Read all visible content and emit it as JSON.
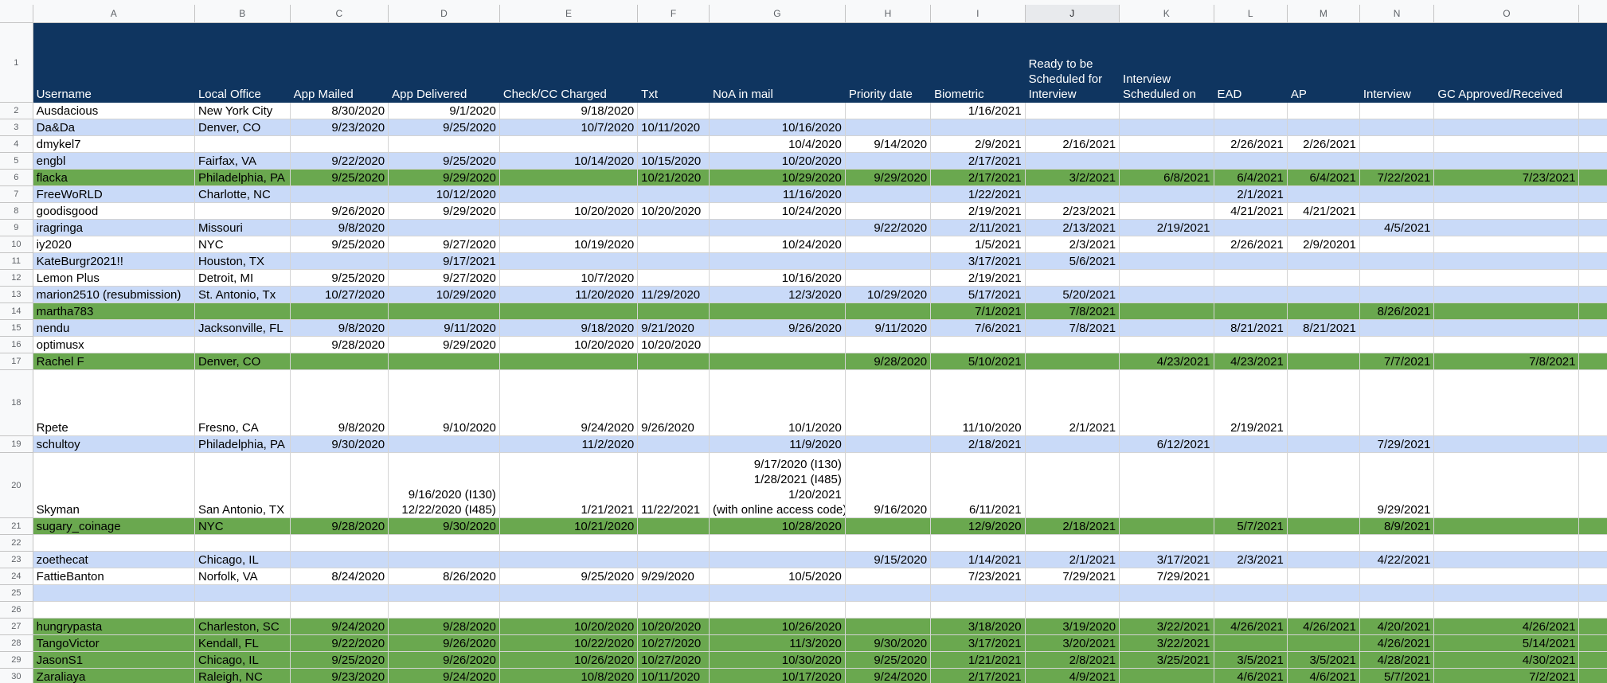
{
  "app": {
    "name": "Spreadsheet"
  },
  "colors": {
    "header_bg": "#0f3560",
    "band_blue": "#c9daf8",
    "band_green": "#6aa84f",
    "grid": "#d4d4d4"
  },
  "columns": [
    "A",
    "B",
    "C",
    "D",
    "E",
    "F",
    "G",
    "H",
    "I",
    "J",
    "K",
    "L",
    "M",
    "N",
    "O"
  ],
  "selected_column": "J",
  "headers": [
    "Username",
    "Local Office",
    "App Mailed",
    "App Delivered",
    "Check/CC Charged",
    "Txt",
    "NoA in mail",
    "Priority date",
    "Biometric",
    "Ready to be\n Scheduled for\nInterview",
    "Interview\nScheduled\non",
    "EAD",
    "AP",
    "Interview",
    "GC Approved/Received"
  ],
  "rows": [
    {
      "n": "2",
      "style": "white",
      "cells": [
        "Ausdacious",
        "New York City",
        "8/30/2020",
        "9/1/2020",
        "9/18/2020",
        "",
        "",
        "",
        "1/16/2021",
        "",
        "",
        "",
        "",
        "",
        ""
      ]
    },
    {
      "n": "3",
      "style": "blue",
      "cells": [
        "Da&Da",
        "Denver, CO",
        "9/23/2020",
        "9/25/2020",
        "10/7/2020",
        "10/11/2020",
        "10/16/2020",
        "",
        "",
        "",
        "",
        "",
        "",
        "",
        ""
      ]
    },
    {
      "n": "4",
      "style": "white",
      "cells": [
        "dmykel7",
        "",
        "",
        "",
        "",
        "",
        "10/4/2020",
        "9/14/2020",
        "2/9/2021",
        "2/16/2021",
        "",
        "2/26/2021",
        "2/26/2021",
        "",
        ""
      ]
    },
    {
      "n": "5",
      "style": "blue",
      "cells": [
        "engbl",
        "Fairfax, VA",
        "9/22/2020",
        "9/25/2020",
        "10/14/2020",
        "10/15/2020",
        "10/20/2020",
        "",
        "2/17/2021",
        "",
        "",
        "",
        "",
        "",
        ""
      ]
    },
    {
      "n": "6",
      "style": "green",
      "cells": [
        "flacka",
        "Philadelphia, PA",
        "9/25/2020",
        "9/29/2020",
        "",
        "10/21/2020",
        "10/29/2020",
        "9/29/2020",
        "2/17/2021",
        "3/2/2021",
        "6/8/2021",
        "6/4/2021",
        "6/4/2021",
        "7/22/2021",
        "7/23/2021"
      ]
    },
    {
      "n": "7",
      "style": "blue",
      "cells": [
        "FreeWoRLD",
        "Charlotte, NC",
        "",
        "10/12/2020",
        "",
        "",
        "11/16/2020",
        "",
        "1/22/2021",
        "",
        "",
        "2/1/2021",
        "",
        "",
        ""
      ]
    },
    {
      "n": "8",
      "style": "white",
      "cells": [
        "goodisgood",
        "",
        "9/26/2020",
        "9/29/2020",
        "10/20/2020",
        "10/20/2020",
        "10/24/2020",
        "",
        "2/19/2021",
        "2/23/2021",
        "",
        "4/21/2021",
        "4/21/2021",
        "",
        ""
      ]
    },
    {
      "n": "9",
      "style": "blue",
      "cells": [
        "iragringa",
        "Missouri",
        "9/8/2020",
        "",
        "",
        "",
        "",
        "9/22/2020",
        "2/11/2021",
        "2/13/2021",
        "2/19/2021",
        "",
        "",
        "4/5/2021",
        ""
      ]
    },
    {
      "n": "10",
      "style": "white",
      "cells": [
        "iy2020",
        "NYC",
        "9/25/2020",
        "9/27/2020",
        "10/19/2020",
        "",
        "10/24/2020",
        "",
        "1/5/2021",
        "2/3/2021",
        "",
        "2/26/2021",
        "2/9/20201",
        "",
        ""
      ]
    },
    {
      "n": "11",
      "style": "blue",
      "cells": [
        "KateBurgr2021!!",
        "Houston, TX",
        "",
        "9/17/2021",
        "",
        "",
        "",
        "",
        "3/17/2021",
        "5/6/2021",
        "",
        "",
        "",
        "",
        ""
      ]
    },
    {
      "n": "12",
      "style": "white",
      "cells": [
        "Lemon Plus",
        "Detroit, MI",
        "9/25/2020",
        "9/27/2020",
        "10/7/2020",
        "",
        "10/16/2020",
        "",
        "2/19/2021",
        "",
        "",
        "",
        "",
        "",
        ""
      ]
    },
    {
      "n": "13",
      "style": "blue",
      "cells": [
        "marion2510 (resubmission)",
        "St. Antonio, Tx",
        "10/27/2020",
        "10/29/2020",
        "11/20/2020",
        "11/29/2020",
        "12/3/2020",
        "10/29/2020",
        "5/17/2021",
        "5/20/2021",
        "",
        "",
        "",
        "",
        ""
      ]
    },
    {
      "n": "14",
      "style": "green",
      "cells": [
        "martha783",
        "",
        "",
        "",
        "",
        "",
        "",
        "",
        "7/1/2021",
        "7/8/2021",
        "",
        "",
        "",
        "8/26/2021",
        ""
      ]
    },
    {
      "n": "15",
      "style": "blue",
      "cells": [
        "nendu",
        "Jacksonville, FL",
        "9/8/2020",
        "9/11/2020",
        "9/18/2020",
        "9/21/2020",
        "9/26/2020",
        "9/11/2020",
        "7/6/2021",
        "7/8/2021",
        "",
        "8/21/2021",
        "8/21/2021",
        "",
        ""
      ]
    },
    {
      "n": "16",
      "style": "white",
      "cells": [
        "optimusx",
        "",
        "9/28/2020",
        "9/29/2020",
        "10/20/2020",
        "10/20/2020",
        "",
        "",
        "",
        "",
        "",
        "",
        "",
        "",
        ""
      ]
    },
    {
      "n": "17",
      "style": "green",
      "cells": [
        "Rachel F",
        "Denver, CO",
        "",
        "",
        "",
        "",
        "",
        "9/28/2020",
        "5/10/2021",
        "",
        "4/23/2021",
        "4/23/2021",
        "",
        "7/7/2021",
        "7/8/2021"
      ]
    },
    {
      "n": "18",
      "style": "white",
      "tall": true,
      "cells": [
        "Rpete",
        "Fresno, CA",
        "9/8/2020",
        "9/10/2020",
        "9/24/2020",
        "9/26/2020",
        "10/1/2020",
        "",
        "11/10/2020",
        "2/1/2021",
        "",
        "2/19/2021",
        "",
        "",
        ""
      ]
    },
    {
      "n": "19",
      "style": "blue",
      "cells": [
        "schultoy",
        "Philadelphia, PA",
        "9/30/2020",
        "",
        "11/2/2020",
        "",
        "11/9/2020",
        "",
        "2/18/2021",
        "",
        "6/12/2021",
        "",
        "",
        "7/29/2021",
        ""
      ]
    },
    {
      "n": "20",
      "style": "white",
      "tall": true,
      "cells": [
        "Skyman",
        "San Antonio, TX",
        "",
        "9/16/2020 (I130)\n12/22/2020 (I485)",
        "1/21/2021",
        "11/22/2021",
        "9/17/2020 (I130)\n1/28/2021 (I485)\n1/20/2021\n(with online access code)",
        "9/16/2020",
        "6/11/2021",
        "",
        "",
        "",
        "",
        "9/29/2021",
        ""
      ]
    },
    {
      "n": "21",
      "style": "green",
      "cells": [
        "sugary_coinage",
        "NYC",
        "9/28/2020",
        "9/30/2020",
        "10/21/2020",
        "",
        "10/28/2020",
        "",
        "12/9/2020",
        "2/18/2021",
        "",
        "5/7/2021",
        "",
        "8/9/2021",
        ""
      ]
    },
    {
      "n": "22",
      "style": "white",
      "cells": [
        "",
        "",
        "",
        "",
        "",
        "",
        "",
        "",
        "",
        "",
        "",
        "",
        "",
        "",
        ""
      ]
    },
    {
      "n": "23",
      "style": "blue",
      "cells": [
        "zoethecat",
        "Chicago, IL",
        "",
        "",
        "",
        "",
        "",
        "9/15/2020",
        "1/14/2021",
        "2/1/2021",
        "3/17/2021",
        "2/3/2021",
        "",
        "4/22/2021",
        ""
      ]
    },
    {
      "n": "24",
      "style": "white",
      "cells": [
        "FattieBanton",
        "Norfolk, VA",
        "8/24/2020",
        "8/26/2020",
        "9/25/2020",
        "9/29/2020",
        "10/5/2020",
        "",
        "7/23/2021",
        "7/29/2021",
        "7/29/2021",
        "",
        "",
        "",
        ""
      ]
    },
    {
      "n": "25",
      "style": "blue",
      "cells": [
        "",
        "",
        "",
        "",
        "",
        "",
        "",
        "",
        "",
        "",
        "",
        "",
        "",
        "",
        ""
      ]
    },
    {
      "n": "26",
      "style": "white",
      "cells": [
        "",
        "",
        "",
        "",
        "",
        "",
        "",
        "",
        "",
        "",
        "",
        "",
        "",
        "",
        ""
      ]
    },
    {
      "n": "27",
      "style": "green",
      "cells": [
        "hungrypasta",
        "Charleston, SC",
        "9/24/2020",
        "9/28/2020",
        "10/20/2020",
        "10/20/2020",
        "10/26/2020",
        "",
        "3/18/2020",
        "3/19/2020",
        "3/22/2021",
        "4/26/2021",
        "4/26/2021",
        "4/20/2021",
        "4/26/2021"
      ]
    },
    {
      "n": "28",
      "style": "green",
      "cells": [
        "TangoVictor",
        "Kendall, FL",
        "9/22/2020",
        "9/26/2020",
        "10/22/2020",
        "10/27/2020",
        "11/3/2020",
        "9/30/2020",
        "3/17/2021",
        "3/20/2021",
        "3/22/2021",
        "",
        "",
        "4/26/2021",
        "5/14/2021"
      ]
    },
    {
      "n": "29",
      "style": "green",
      "cells": [
        "JasonS1",
        "Chicago, IL",
        "9/25/2020",
        "9/26/2020",
        "10/26/2020",
        "10/27/2020",
        "10/30/2020",
        "9/25/2020",
        "1/21/2021",
        "2/8/2021",
        "3/25/2021",
        "3/5/2021",
        "3/5/2021",
        "4/28/2021",
        "4/30/2021"
      ]
    },
    {
      "n": "30",
      "style": "green",
      "cells": [
        "Zaraliaya",
        "Raleigh, NC",
        "9/23/2020",
        "9/24/2020",
        "10/8/2020",
        "10/11/2020",
        "10/17/2020",
        "9/24/2020",
        "2/17/2021",
        "4/9/2021",
        "",
        "4/6/2021",
        "4/6/2021",
        "5/7/2021",
        "7/2/2021"
      ]
    }
  ]
}
